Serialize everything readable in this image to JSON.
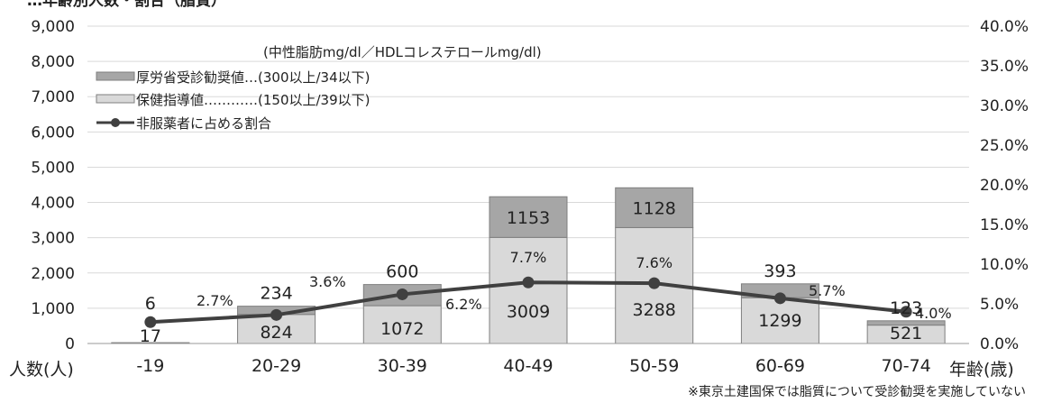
{
  "chart_data": {
    "type": "bar",
    "title": "…年齢別人数・割合（脂質）",
    "categories": [
      "-19",
      "20-29",
      "30-39",
      "40-49",
      "50-59",
      "60-69",
      "70-74"
    ],
    "series": [
      {
        "name": "保健指導値…………(150以上/39以下)",
        "type": "stacked-bar",
        "axis": "left",
        "color": "#d9d9d9",
        "values": [
          17,
          824,
          1072,
          3009,
          3288,
          1299,
          521
        ]
      },
      {
        "name": "厚労省受診勧奨値…(300以上/34以下)",
        "type": "stacked-bar",
        "axis": "left",
        "color": "#a6a6a6",
        "values": [
          6,
          234,
          600,
          1153,
          1128,
          393,
          123
        ]
      },
      {
        "name": "非服薬者に占める割合",
        "type": "line",
        "axis": "right",
        "color": "#404040",
        "values": [
          2.7,
          3.6,
          6.2,
          7.7,
          7.6,
          5.7,
          4.0
        ]
      }
    ],
    "pct_labels": [
      "2.7%",
      "3.6%",
      "6.2%",
      "7.7%",
      "7.6%",
      "5.7%",
      "4.0%"
    ],
    "ylim": [
      0,
      9000
    ],
    "y2lim": [
      0,
      40
    ],
    "yticks": [
      "0",
      "1,000",
      "2,000",
      "3,000",
      "4,000",
      "5,000",
      "6,000",
      "7,000",
      "8,000",
      "9,000"
    ],
    "y2ticks": [
      "0.0%",
      "5.0%",
      "10.0%",
      "15.0%",
      "20.0%",
      "25.0%",
      "30.0%",
      "35.0%",
      "40.0%"
    ],
    "ylabel": "人数(人)",
    "xlabel": "年齢(歳)",
    "legend_note": "(中性脂肪mg/dl／HDLコレステロールmg/dl)",
    "legend_position": "top-left",
    "grid": true,
    "footnote": "※東京土建国保では脂質について受診勧奨を実施していない"
  }
}
